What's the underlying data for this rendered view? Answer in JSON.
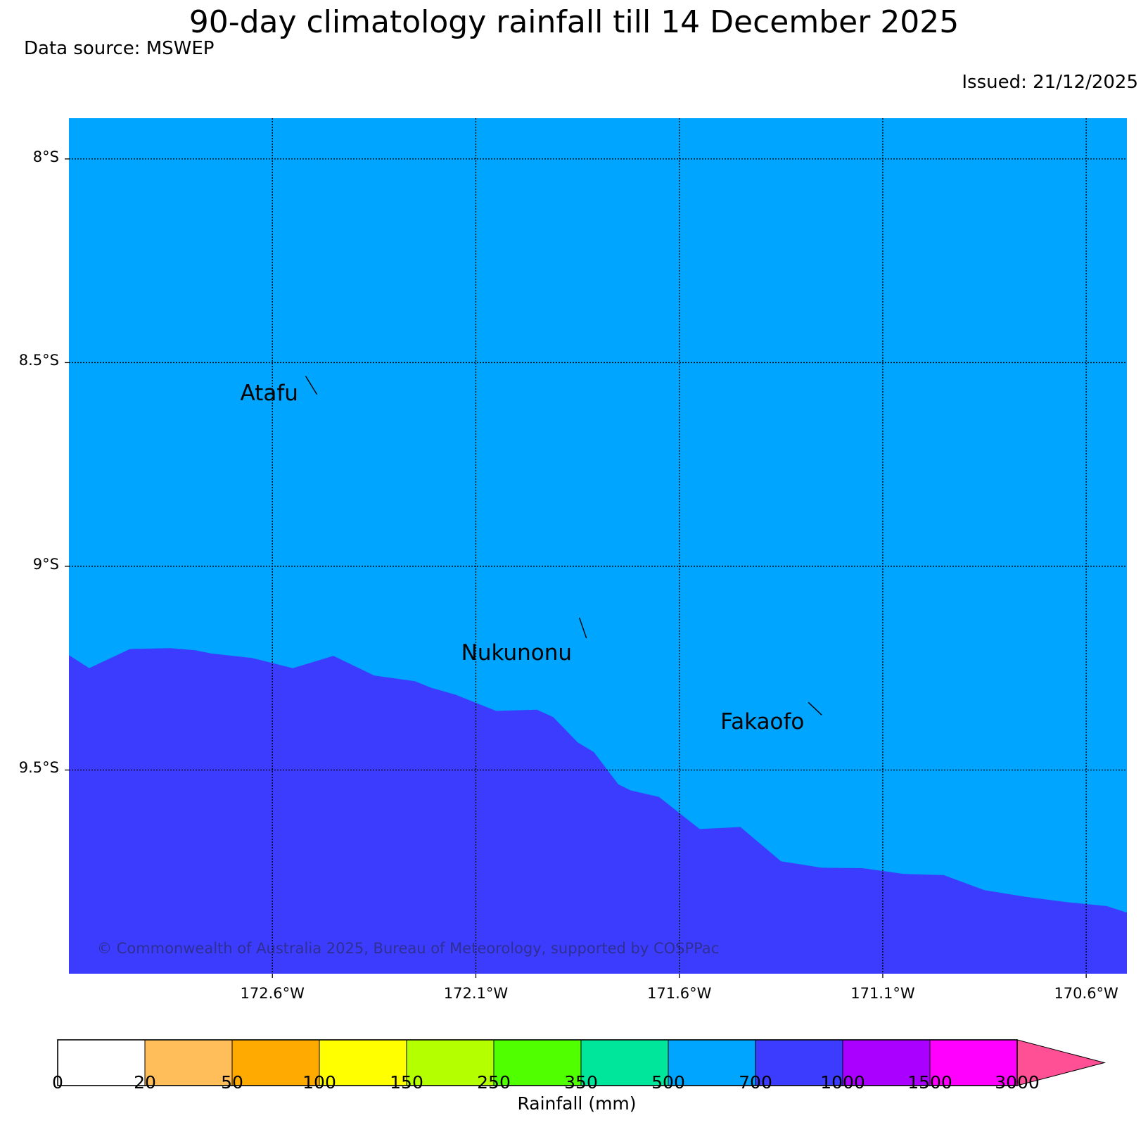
{
  "title": "90-day climatology rainfall till 14 December 2025",
  "data_source": "Data source: MSWEP",
  "issued": "Issued: 21/12/2025",
  "copyright": "© Commonwealth of Australia 2025, Bureau of Meteorology, supported by COSPPac",
  "map": {
    "lon_range": [
      -173.1,
      -170.5
    ],
    "lat_range": [
      -10.0,
      -7.9
    ],
    "lat_ticks": [
      {
        "value": -8.0,
        "label": "8°S"
      },
      {
        "value": -8.5,
        "label": "8.5°S"
      },
      {
        "value": -9.0,
        "label": "9°S"
      },
      {
        "value": -9.5,
        "label": "9.5°S"
      }
    ],
    "lon_ticks": [
      {
        "value": -172.6,
        "label": "172.6°W"
      },
      {
        "value": -172.1,
        "label": "172.1°W"
      },
      {
        "value": -171.6,
        "label": "171.6°W"
      },
      {
        "value": -171.1,
        "label": "171.1°W"
      },
      {
        "value": -170.6,
        "label": "170.6°W"
      }
    ],
    "background_class": {
      "range": "500-700",
      "color": "#00a5ff"
    },
    "region_class": {
      "range": "700-1000",
      "color": "#3c3cff"
    },
    "boundary_700mm": [
      [
        -173.1,
        -9.218
      ],
      [
        -173.05,
        -9.25
      ],
      [
        -172.95,
        -9.203
      ],
      [
        -172.85,
        -9.201
      ],
      [
        -172.79,
        -9.206
      ],
      [
        -172.75,
        -9.214
      ],
      [
        -172.65,
        -9.225
      ],
      [
        -172.55,
        -9.25
      ],
      [
        -172.45,
        -9.22
      ],
      [
        -172.35,
        -9.268
      ],
      [
        -172.25,
        -9.282
      ],
      [
        -172.21,
        -9.298
      ],
      [
        -172.15,
        -9.315
      ],
      [
        -172.05,
        -9.355
      ],
      [
        -171.95,
        -9.352
      ],
      [
        -171.91,
        -9.37
      ],
      [
        -171.85,
        -9.432
      ],
      [
        -171.81,
        -9.456
      ],
      [
        -171.75,
        -9.535
      ],
      [
        -171.72,
        -9.55
      ],
      [
        -171.65,
        -9.566
      ],
      [
        -171.55,
        -9.645
      ],
      [
        -171.45,
        -9.64
      ],
      [
        -171.35,
        -9.724
      ],
      [
        -171.25,
        -9.74
      ],
      [
        -171.15,
        -9.741
      ],
      [
        -171.05,
        -9.755
      ],
      [
        -170.95,
        -9.758
      ],
      [
        -170.85,
        -9.795
      ],
      [
        -170.75,
        -9.811
      ],
      [
        -170.65,
        -9.824
      ],
      [
        -170.55,
        -9.834
      ],
      [
        -170.5,
        -9.85
      ]
    ],
    "places": [
      {
        "name": "Atafu",
        "lon": -172.52,
        "lat": -8.578
      },
      {
        "name": "Nukunonu",
        "lon": -171.83,
        "lat": -9.178
      },
      {
        "name": "Fakaofo",
        "lon": -171.25,
        "lat": -9.365
      }
    ]
  },
  "colorbar": {
    "label": "Rainfall (mm)",
    "boundaries": [
      "0",
      "20",
      "50",
      "100",
      "150",
      "250",
      "350",
      "500",
      "700",
      "1000",
      "1500",
      "3000"
    ],
    "colors": [
      "#ffffff",
      "#ffbe5a",
      "#ffaa00",
      "#ffff00",
      "#b4ff00",
      "#50ff00",
      "#00e69b",
      "#00a5ff",
      "#3c3cff",
      "#aa00ff",
      "#ff00ff"
    ],
    "extend_color": "#ff5096"
  }
}
